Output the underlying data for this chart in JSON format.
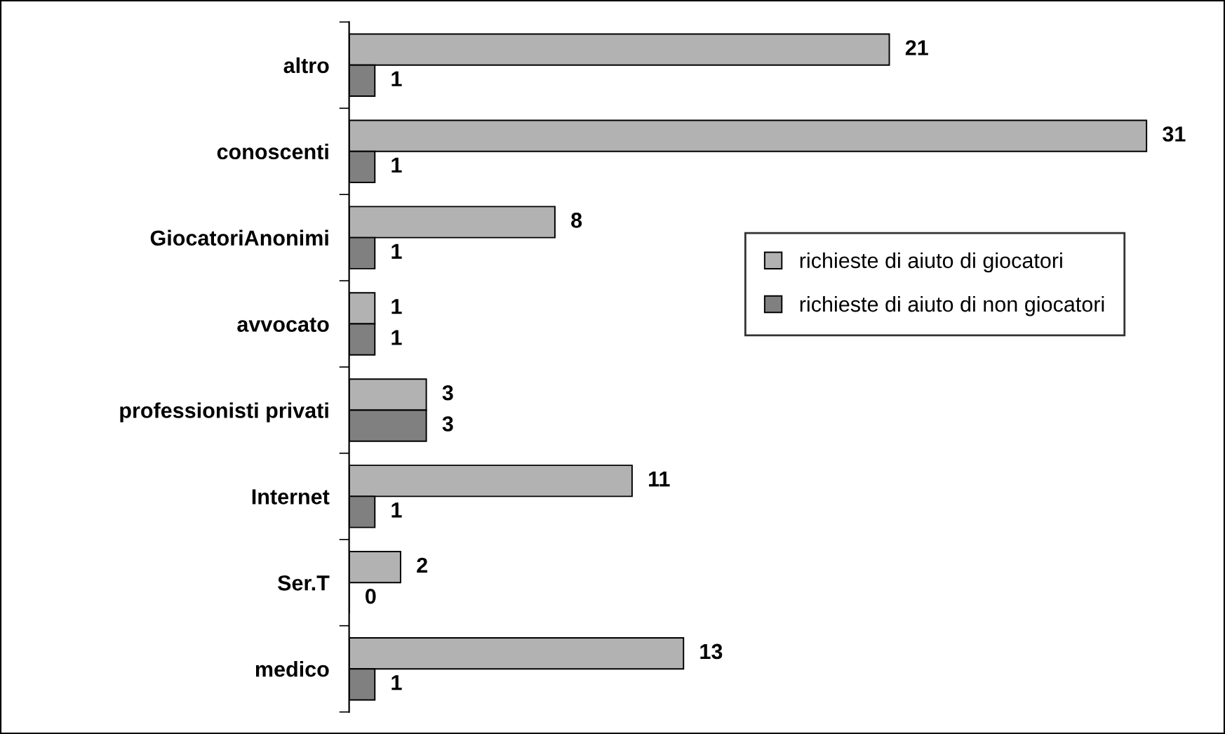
{
  "chart_data": {
    "type": "bar",
    "orientation": "horizontal",
    "categories": [
      "altro",
      "conoscenti",
      "GiocatoriAnonimi",
      "avvocato",
      "professionisti privati",
      "Internet",
      "Ser.T",
      "medico"
    ],
    "series": [
      {
        "name": "richieste di aiuto di giocatori",
        "color": "#b2b2b2",
        "values": [
          21,
          31,
          8,
          1,
          3,
          11,
          2,
          13
        ]
      },
      {
        "name": "richieste di aiuto di non giocatori",
        "color": "#808080",
        "values": [
          1,
          1,
          1,
          1,
          3,
          1,
          0,
          1
        ]
      }
    ],
    "data_labels": true,
    "legend": "right",
    "grid": false,
    "tick_labels": "y"
  }
}
